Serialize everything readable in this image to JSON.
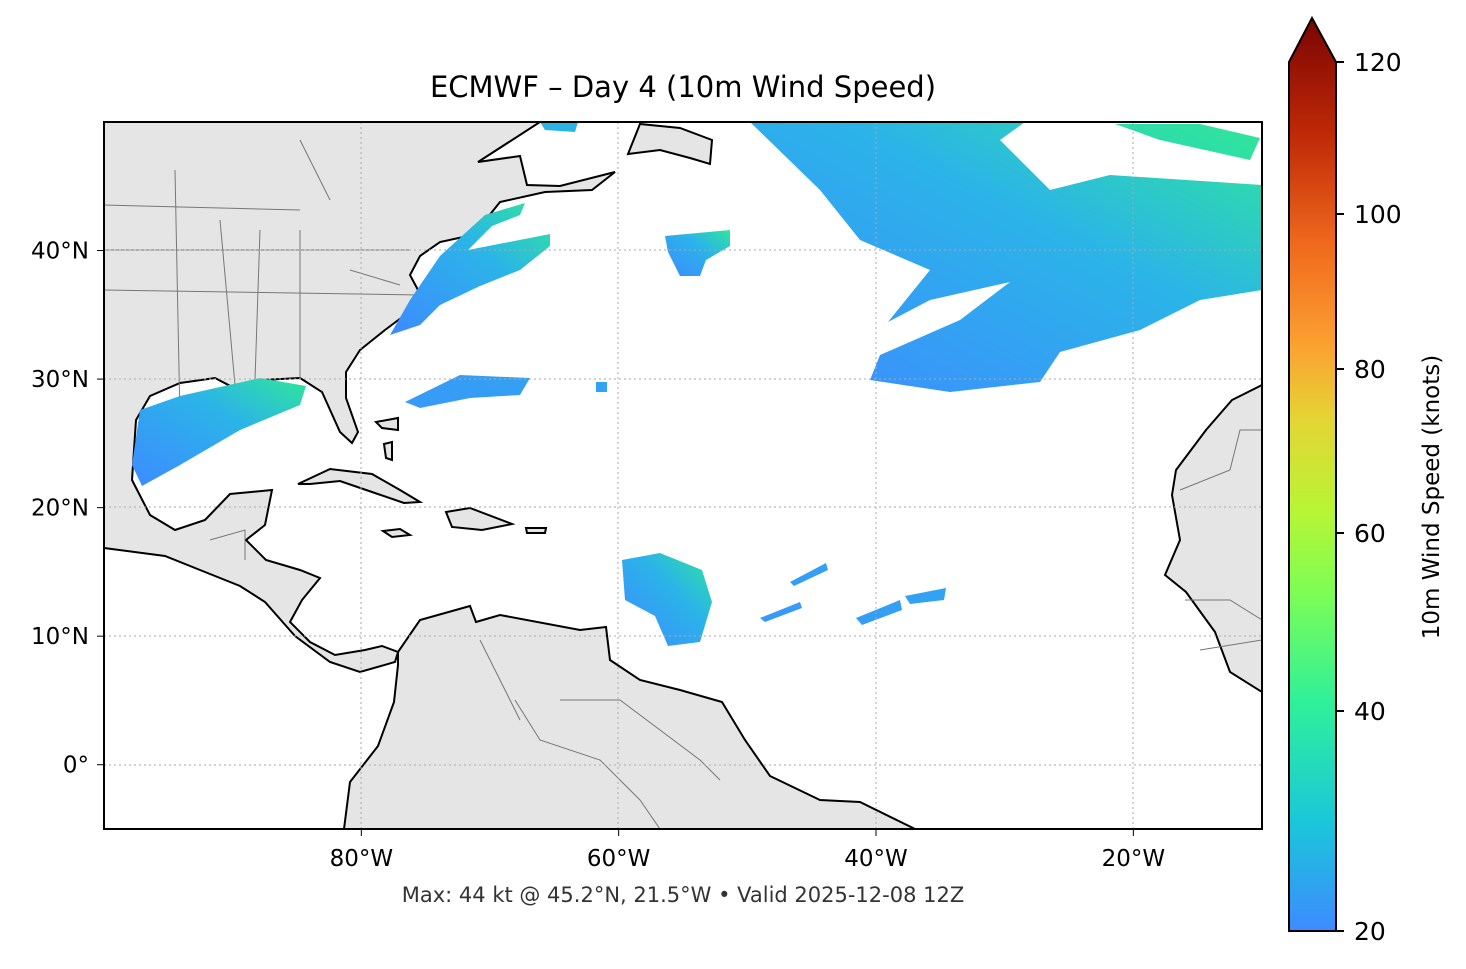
{
  "title": "ECMWF – Day 4 (10m Wind Speed)",
  "footer": "Max: 44 kt @ 45.2°N, 21.5°W • Valid 2025-12-08 12Z",
  "map": {
    "projection": "plate carree",
    "extent": {
      "lon": [
        -100,
        -10
      ],
      "lat": [
        -5,
        50
      ]
    },
    "x_ticks": [
      {
        "value": -80,
        "label": "80°W"
      },
      {
        "value": -60,
        "label": "60°W"
      },
      {
        "value": -40,
        "label": "40°W"
      },
      {
        "value": -20,
        "label": "20°W"
      }
    ],
    "y_ticks": [
      {
        "value": 40,
        "label": "40°N"
      },
      {
        "value": 30,
        "label": "30°N"
      },
      {
        "value": 20,
        "label": "20°N"
      },
      {
        "value": 10,
        "label": "10°N"
      },
      {
        "value": 0,
        "label": "0°"
      }
    ],
    "gridlines": true,
    "land_color": "#e5e5e5",
    "ocean_color": "#ffffff",
    "max_marker": {
      "value_kt": 44,
      "lat": 45.2,
      "lon": -21.5
    }
  },
  "colorbar": {
    "label": "10m Wind Speed (knots)",
    "range": [
      20,
      120
    ],
    "extend": "max",
    "colormap": "turbo",
    "ticks": [
      "120",
      "100",
      "80",
      "60",
      "40",
      "20"
    ],
    "colors": [
      "#3d8bff",
      "#1ac7d9",
      "#2ff09a",
      "#a4fb3c",
      "#e4d535",
      "#fba231",
      "#e8531c",
      "#b81d06",
      "#7a0403"
    ]
  }
}
